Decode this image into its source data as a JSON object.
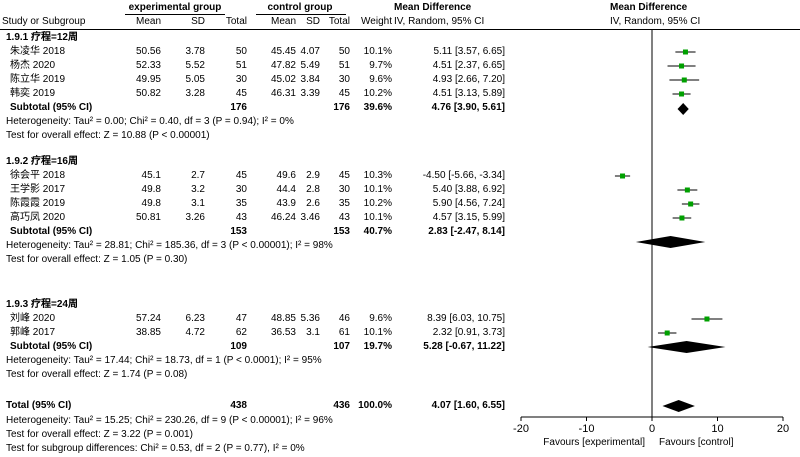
{
  "header": {
    "exp_group": "experimental group",
    "ctrl_group": "control group",
    "md_left": "Mean Difference",
    "md_right": "Mean Difference",
    "study": "Study or Subgroup",
    "mean1": "Mean",
    "sd1": "SD",
    "total1": "Total",
    "mean2": "Mean",
    "sd2": "SD",
    "total2": "Total",
    "weight": "Weight",
    "ci_left": "IV, Random, 95% CI",
    "ci_right": "IV, Random, 95% CI"
  },
  "groups": [
    {
      "title": "1.9.1 疗程=12周",
      "studies": [
        {
          "name": "朱凌华 2018",
          "m1": "50.56",
          "sd1": "3.78",
          "n1": "50",
          "m2": "45.45",
          "sd2": "4.07",
          "n2": "50",
          "w": "10.1%",
          "ci": "5.11 [3.57, 6.65]"
        },
        {
          "name": "杨杰 2020",
          "m1": "52.33",
          "sd1": "5.52",
          "n1": "51",
          "m2": "47.82",
          "sd2": "5.49",
          "n2": "51",
          "w": "9.7%",
          "ci": "4.51 [2.37, 6.65]"
        },
        {
          "name": "陈立华 2019",
          "m1": "49.95",
          "sd1": "5.05",
          "n1": "30",
          "m2": "45.02",
          "sd2": "3.84",
          "n2": "30",
          "w": "9.6%",
          "ci": "4.93 [2.66, 7.20]"
        },
        {
          "name": "韩奕 2019",
          "m1": "50.82",
          "sd1": "3.28",
          "n1": "45",
          "m2": "46.31",
          "sd2": "3.39",
          "n2": "45",
          "w": "10.2%",
          "ci": "4.51 [3.13, 5.89]"
        }
      ],
      "subtotal": {
        "label": "Subtotal (95% CI)",
        "n1": "176",
        "n2": "176",
        "w": "39.6%",
        "ci": "4.76 [3.90, 5.61]"
      },
      "het": "Heterogeneity: Tau² = 0.00; Chi² = 0.40, df = 3 (P = 0.94); I² = 0%",
      "test": "Test for overall effect: Z = 10.88 (P < 0.00001)"
    },
    {
      "title": "1.9.2 疗程=16周",
      "studies": [
        {
          "name": "徐会平 2018",
          "m1": "45.1",
          "sd1": "2.7",
          "n1": "45",
          "m2": "49.6",
          "sd2": "2.9",
          "n2": "45",
          "w": "10.3%",
          "ci": "-4.50 [-5.66, -3.34]"
        },
        {
          "name": "王学影 2017",
          "m1": "49.8",
          "sd1": "3.2",
          "n1": "30",
          "m2": "44.4",
          "sd2": "2.8",
          "n2": "30",
          "w": "10.1%",
          "ci": "5.40 [3.88, 6.92]"
        },
        {
          "name": "陈霞霞 2019",
          "m1": "49.8",
          "sd1": "3.1",
          "n1": "35",
          "m2": "43.9",
          "sd2": "2.6",
          "n2": "35",
          "w": "10.2%",
          "ci": "5.90 [4.56, 7.24]"
        },
        {
          "name": "高巧凤 2020",
          "m1": "50.81",
          "sd1": "3.26",
          "n1": "43",
          "m2": "46.24",
          "sd2": "3.46",
          "n2": "43",
          "w": "10.1%",
          "ci": "4.57 [3.15, 5.99]"
        }
      ],
      "subtotal": {
        "label": "Subtotal (95% CI)",
        "n1": "153",
        "n2": "153",
        "w": "40.7%",
        "ci": "2.83 [-2.47, 8.14]"
      },
      "het": "Heterogeneity: Tau² = 28.81; Chi² = 185.36, df = 3 (P < 0.00001); I² = 98%",
      "test": "Test for overall effect: Z = 1.05 (P = 0.30)"
    },
    {
      "title": "1.9.3 疗程=24周",
      "studies": [
        {
          "name": "刘峰 2020",
          "m1": "57.24",
          "sd1": "6.23",
          "n1": "47",
          "m2": "48.85",
          "sd2": "5.36",
          "n2": "46",
          "w": "9.6%",
          "ci": "8.39 [6.03, 10.75]"
        },
        {
          "name": "郭峰 2017",
          "m1": "38.85",
          "sd1": "4.72",
          "n1": "62",
          "m2": "36.53",
          "sd2": "3.1",
          "n2": "61",
          "w": "10.1%",
          "ci": "2.32 [0.91, 3.73]"
        }
      ],
      "subtotal": {
        "label": "Subtotal (95% CI)",
        "n1": "109",
        "n2": "107",
        "w": "19.7%",
        "ci": "5.28 [-0.67, 11.22]"
      },
      "het": "Heterogeneity: Tau² = 17.44; Chi² = 18.73, df = 1 (P < 0.0001); I² = 95%",
      "test": "Test for overall effect: Z = 1.74 (P = 0.08)"
    }
  ],
  "total": {
    "label": "Total (95% CI)",
    "n1": "438",
    "n2": "436",
    "w": "100.0%",
    "ci": "4.07 [1.60, 6.55]"
  },
  "footer": [
    "Heterogeneity: Tau² = 15.25; Chi² = 230.26, df = 9 (P < 0.00001); I² = 96%",
    "Test for overall effect: Z = 3.22 (P = 0.001)",
    "Test for subgroup differences: Chi² = 0.53, df = 2 (P = 0.77), I² = 0%"
  ],
  "axis_labels": {
    "left": "Favours [experimental]",
    "right": "Favours [control]"
  },
  "colors": {
    "point": "#00a000",
    "line": "#000000",
    "diamond": "#000000"
  },
  "chart_data": {
    "type": "scatter",
    "subtype": "forest-plot",
    "xlim": [
      -20,
      20
    ],
    "ticks": [
      "-20",
      "-10",
      "0",
      "10",
      "20"
    ],
    "tick_values": [
      -20,
      -10,
      0,
      10,
      20
    ],
    "studies": [
      {
        "md": 5.11,
        "lo": 3.57,
        "hi": 6.65
      },
      {
        "md": 4.51,
        "lo": 2.37,
        "hi": 6.65
      },
      {
        "md": 4.93,
        "lo": 2.66,
        "hi": 7.2
      },
      {
        "md": 4.51,
        "lo": 3.13,
        "hi": 5.89
      },
      {
        "md": -4.5,
        "lo": -5.66,
        "hi": -3.34
      },
      {
        "md": 5.4,
        "lo": 3.88,
        "hi": 6.92
      },
      {
        "md": 5.9,
        "lo": 4.56,
        "hi": 7.24
      },
      {
        "md": 4.57,
        "lo": 3.15,
        "hi": 5.99
      },
      {
        "md": 8.39,
        "lo": 6.03,
        "hi": 10.75
      },
      {
        "md": 2.32,
        "lo": 0.91,
        "hi": 3.73
      }
    ],
    "diamonds": [
      {
        "md": 4.76,
        "lo": 3.9,
        "hi": 5.61
      },
      {
        "md": 2.83,
        "lo": -2.47,
        "hi": 8.14
      },
      {
        "md": 5.28,
        "lo": -0.67,
        "hi": 11.22
      },
      {
        "md": 4.07,
        "lo": 1.6,
        "hi": 6.55
      }
    ]
  }
}
